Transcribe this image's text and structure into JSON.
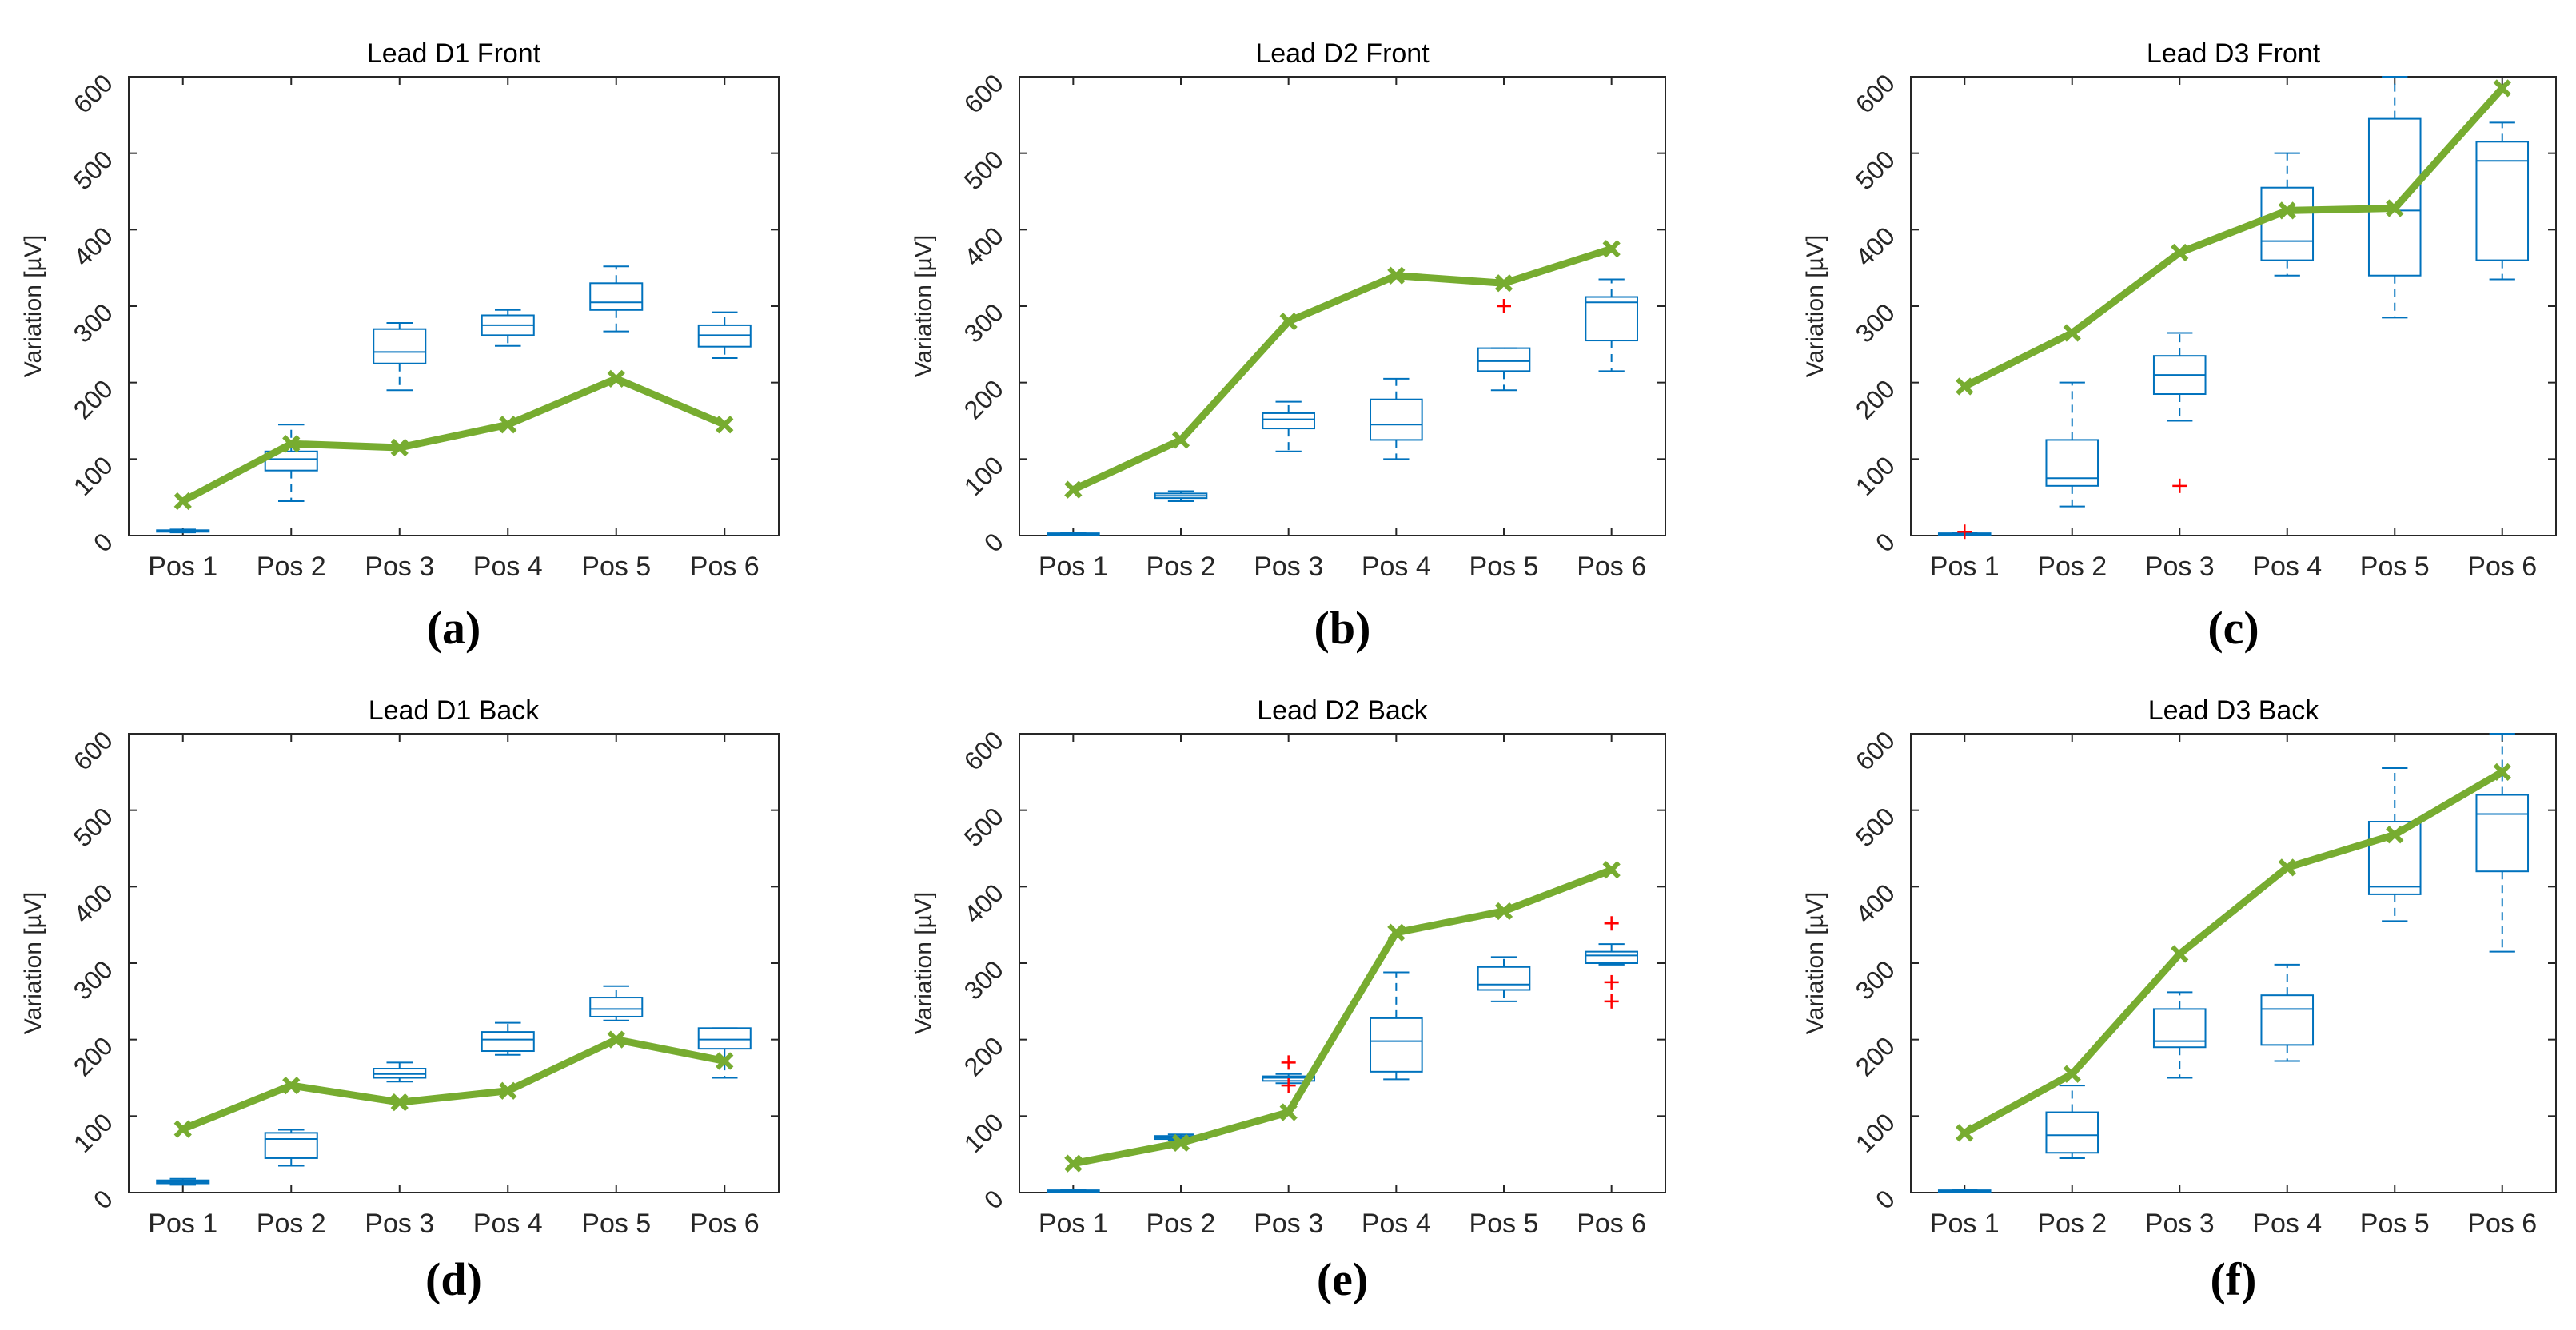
{
  "figure": {
    "y_axis_label": "Variation [µV]",
    "y_ticks": [
      0,
      100,
      200,
      300,
      400,
      500,
      600
    ],
    "categories": [
      "Pos 1",
      "Pos 2",
      "Pos 3",
      "Pos 4",
      "Pos 5",
      "Pos 6"
    ],
    "colors": {
      "box": "#0072BD",
      "line": "#77AC30",
      "outlier": "#FF0000",
      "axis": "#262626"
    }
  },
  "chart_data": [
    {
      "id": "a",
      "panel_label": "(a)",
      "title": "Lead D1 Front",
      "type": "box+line",
      "categories": [
        "Pos 1",
        "Pos 2",
        "Pos 3",
        "Pos 4",
        "Pos 5",
        "Pos 6"
      ],
      "ylabel": "Variation [µV]",
      "ylim": [
        0,
        600
      ],
      "boxes": [
        {
          "min": 4,
          "q1": 5,
          "median": 6,
          "q3": 7,
          "max": 8
        },
        {
          "min": 45,
          "q1": 85,
          "median": 100,
          "q3": 110,
          "max": 145
        },
        {
          "min": 190,
          "q1": 225,
          "median": 240,
          "q3": 270,
          "max": 278
        },
        {
          "min": 248,
          "q1": 262,
          "median": 275,
          "q3": 288,
          "max": 295
        },
        {
          "min": 267,
          "q1": 295,
          "median": 305,
          "q3": 330,
          "max": 352
        },
        {
          "min": 232,
          "q1": 247,
          "median": 262,
          "q3": 275,
          "max": 292
        }
      ],
      "outliers": [],
      "line_values": [
        45,
        120,
        115,
        145,
        205,
        145
      ]
    },
    {
      "id": "b",
      "panel_label": "(b)",
      "title": "Lead D2 Front",
      "type": "box+line",
      "categories": [
        "Pos 1",
        "Pos 2",
        "Pos 3",
        "Pos 4",
        "Pos 5",
        "Pos 6"
      ],
      "ylabel": "Variation [µV]",
      "ylim": [
        0,
        600
      ],
      "boxes": [
        {
          "min": 0,
          "q1": 1,
          "median": 2,
          "q3": 3,
          "max": 4
        },
        {
          "min": 45,
          "q1": 49,
          "median": 52,
          "q3": 55,
          "max": 58
        },
        {
          "min": 110,
          "q1": 140,
          "median": 152,
          "q3": 160,
          "max": 175
        },
        {
          "min": 100,
          "q1": 125,
          "median": 145,
          "q3": 178,
          "max": 205
        },
        {
          "min": 190,
          "q1": 215,
          "median": 228,
          "q3": 245,
          "max": 245
        },
        {
          "min": 215,
          "q1": 255,
          "median": 305,
          "q3": 312,
          "max": 335
        }
      ],
      "outliers": [
        {
          "pos": 5,
          "value": 300
        }
      ],
      "line_values": [
        60,
        125,
        280,
        340,
        330,
        375
      ]
    },
    {
      "id": "c",
      "panel_label": "(c)",
      "title": "Lead D3 Front",
      "type": "box+line",
      "categories": [
        "Pos 1",
        "Pos 2",
        "Pos 3",
        "Pos 4",
        "Pos 5",
        "Pos 6"
      ],
      "ylabel": "Variation [µV]",
      "ylim": [
        0,
        600
      ],
      "boxes": [
        {
          "min": 0,
          "q1": 1,
          "median": 2,
          "q3": 3,
          "max": 4
        },
        {
          "min": 38,
          "q1": 65,
          "median": 75,
          "q3": 125,
          "max": 200
        },
        {
          "min": 150,
          "q1": 185,
          "median": 210,
          "q3": 235,
          "max": 265
        },
        {
          "min": 340,
          "q1": 360,
          "median": 385,
          "q3": 455,
          "max": 500
        },
        {
          "min": 285,
          "q1": 340,
          "median": 425,
          "q3": 545,
          "max": 600
        },
        {
          "min": 335,
          "q1": 360,
          "median": 490,
          "q3": 515,
          "max": 540
        }
      ],
      "outliers": [
        {
          "pos": 1,
          "value": 5
        },
        {
          "pos": 3,
          "value": 65
        }
      ],
      "line_values": [
        195,
        265,
        370,
        425,
        428,
        585
      ]
    },
    {
      "id": "d",
      "panel_label": "(d)",
      "title": "Lead D1 Back",
      "type": "box+line",
      "categories": [
        "Pos 1",
        "Pos 2",
        "Pos 3",
        "Pos 4",
        "Pos 5",
        "Pos 6"
      ],
      "ylabel": "Variation [µV]",
      "ylim": [
        0,
        600
      ],
      "boxes": [
        {
          "min": 10,
          "q1": 12,
          "median": 14,
          "q3": 16,
          "max": 18
        },
        {
          "min": 35,
          "q1": 45,
          "median": 70,
          "q3": 78,
          "max": 82
        },
        {
          "min": 145,
          "q1": 150,
          "median": 155,
          "q3": 162,
          "max": 170
        },
        {
          "min": 180,
          "q1": 185,
          "median": 200,
          "q3": 210,
          "max": 222
        },
        {
          "min": 225,
          "q1": 230,
          "median": 240,
          "q3": 255,
          "max": 270
        },
        {
          "min": 150,
          "q1": 188,
          "median": 200,
          "q3": 215,
          "max": 215
        }
      ],
      "outliers": [],
      "line_values": [
        83,
        140,
        118,
        133,
        200,
        172
      ]
    },
    {
      "id": "e",
      "panel_label": "(e)",
      "title": "Lead D2 Back",
      "type": "box+line",
      "categories": [
        "Pos 1",
        "Pos 2",
        "Pos 3",
        "Pos 4",
        "Pos 5",
        "Pos 6"
      ],
      "ylabel": "Variation [µV]",
      "ylim": [
        0,
        600
      ],
      "boxes": [
        {
          "min": 0,
          "q1": 1,
          "median": 2,
          "q3": 3,
          "max": 4
        },
        {
          "min": 68,
          "q1": 70,
          "median": 72,
          "q3": 74,
          "max": 76
        },
        {
          "min": 143,
          "q1": 146,
          "median": 150,
          "q3": 152,
          "max": 155
        },
        {
          "min": 148,
          "q1": 158,
          "median": 198,
          "q3": 228,
          "max": 288
        },
        {
          "min": 250,
          "q1": 265,
          "median": 272,
          "q3": 295,
          "max": 308
        },
        {
          "min": 298,
          "q1": 300,
          "median": 310,
          "q3": 315,
          "max": 325
        }
      ],
      "outliers": [
        {
          "pos": 3,
          "value": 170
        },
        {
          "pos": 3,
          "value": 140
        },
        {
          "pos": 6,
          "value": 352
        },
        {
          "pos": 6,
          "value": 275
        },
        {
          "pos": 6,
          "value": 250
        }
      ],
      "line_values": [
        38,
        65,
        105,
        340,
        368,
        422
      ]
    },
    {
      "id": "f",
      "panel_label": "(f)",
      "title": "Lead D3 Back",
      "type": "box+line",
      "categories": [
        "Pos 1",
        "Pos 2",
        "Pos 3",
        "Pos 4",
        "Pos 5",
        "Pos 6"
      ],
      "ylabel": "Variation [µV]",
      "ylim": [
        0,
        600
      ],
      "boxes": [
        {
          "min": 0,
          "q1": 1,
          "median": 2,
          "q3": 3,
          "max": 4
        },
        {
          "min": 45,
          "q1": 52,
          "median": 75,
          "q3": 105,
          "max": 140
        },
        {
          "min": 150,
          "q1": 190,
          "median": 198,
          "q3": 240,
          "max": 262
        },
        {
          "min": 172,
          "q1": 193,
          "median": 240,
          "q3": 258,
          "max": 298
        },
        {
          "min": 355,
          "q1": 390,
          "median": 400,
          "q3": 485,
          "max": 555
        },
        {
          "min": 315,
          "q1": 420,
          "median": 495,
          "q3": 520,
          "max": 600
        }
      ],
      "outliers": [],
      "line_values": [
        78,
        155,
        312,
        425,
        468,
        550
      ]
    }
  ]
}
